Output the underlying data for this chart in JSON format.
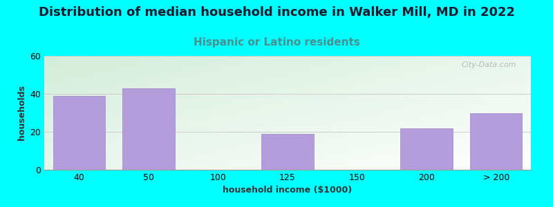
{
  "title": "Distribution of median household income in Walker Mill, MD in 2022",
  "subtitle": "Hispanic or Latino residents",
  "xlabel": "household income ($1000)",
  "ylabel": "households",
  "background_color": "#00FFFF",
  "bar_color": "#b39ddb",
  "bar_edge_color": "#9b87c8",
  "categories": [
    "40",
    "50",
    "100",
    "125",
    "150",
    "200",
    "> 200"
  ],
  "values": [
    39,
    43,
    0,
    19,
    0,
    22,
    30
  ],
  "ylim": [
    0,
    60
  ],
  "yticks": [
    0,
    20,
    40,
    60
  ],
  "grid_color": "#cccccc",
  "title_fontsize": 13,
  "subtitle_fontsize": 11,
  "subtitle_color": "#4a9090",
  "axis_label_fontsize": 9,
  "tick_fontsize": 9,
  "watermark_text": "City-Data.com",
  "watermark_color": "#aaaaaa",
  "gradient_top_left": "#d4edda",
  "gradient_bottom_right": "#ffffff"
}
